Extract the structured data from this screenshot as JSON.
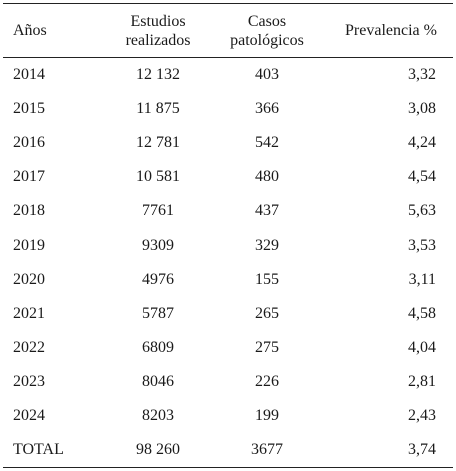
{
  "table": {
    "headers": {
      "year": "Años",
      "studies_line1": "Estudios",
      "studies_line2": "realizados",
      "cases_line1": "Casos",
      "cases_line2": "patológicos",
      "prevalence": "Prevalencia %"
    },
    "rows": [
      {
        "year": "2014",
        "studies": "12 132",
        "cases": "403",
        "prevalence": "3,32"
      },
      {
        "year": "2015",
        "studies": "11 875",
        "cases": "366",
        "prevalence": "3,08"
      },
      {
        "year": "2016",
        "studies": "12 781",
        "cases": "542",
        "prevalence": "4,24"
      },
      {
        "year": "2017",
        "studies": "10 581",
        "cases": "480",
        "prevalence": "4,54"
      },
      {
        "year": "2018",
        "studies": "7761",
        "cases": "437",
        "prevalence": "5,63"
      },
      {
        "year": "2019",
        "studies": "9309",
        "cases": "329",
        "prevalence": "3,53"
      },
      {
        "year": "2020",
        "studies": "4976",
        "cases": "155",
        "prevalence": "3,11"
      },
      {
        "year": "2021",
        "studies": "5787",
        "cases": "265",
        "prevalence": "4,58"
      },
      {
        "year": "2022",
        "studies": "6809",
        "cases": "275",
        "prevalence": "4,04"
      },
      {
        "year": "2023",
        "studies": "8046",
        "cases": "226",
        "prevalence": "2,81"
      },
      {
        "year": "2024",
        "studies": "8203",
        "cases": "199",
        "prevalence": "2,43"
      },
      {
        "year": "TOTAL",
        "studies": "98 260",
        "cases": "3677",
        "prevalence": "3,74"
      }
    ]
  }
}
